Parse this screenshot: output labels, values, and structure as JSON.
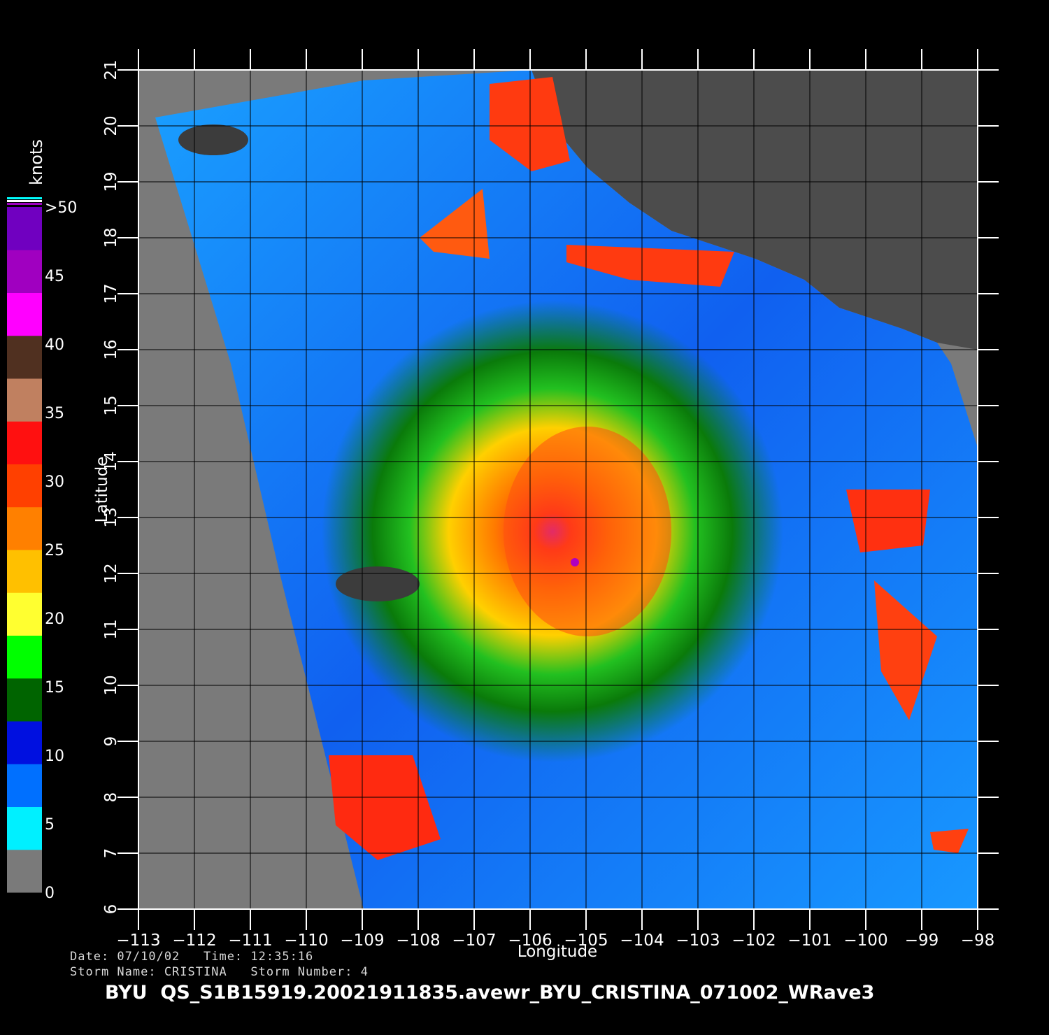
{
  "map": {
    "lon_min": -113,
    "lon_max": -98,
    "lat_min": 6,
    "lat_max": 21,
    "x_ticks": [
      "−113",
      "−112",
      "−111",
      "−110",
      "−109",
      "−108",
      "−107",
      "−106",
      "−105",
      "−104",
      "−103",
      "−102",
      "−101",
      "−100",
      "−99",
      "−98"
    ],
    "y_ticks": [
      "6",
      "7",
      "8",
      "9",
      "10",
      "11",
      "12",
      "13",
      "14",
      "15",
      "16",
      "17",
      "18",
      "19",
      "20",
      "21"
    ],
    "xlabel": "Longitude",
    "ylabel": "Latitude",
    "storm_center": {
      "lon": -105.2,
      "lat": 12.2
    }
  },
  "colorbar": {
    "unit": "knots",
    "labels": [
      "0",
      "5",
      "10",
      "15",
      "20",
      "25",
      "30",
      "35",
      "40",
      "45",
      ">50"
    ],
    "colors": [
      "#7a7a7a",
      "#00f0ff",
      "#0070ff",
      "#0010e0",
      "#006400",
      "#00ff00",
      "#ffff30",
      "#ffc000",
      "#ff8000",
      "#ff4000",
      "#ff1010",
      "#c08060",
      "#503020",
      "#ff00ff",
      "#a000c0",
      "#7000c0"
    ]
  },
  "info": {
    "date_line": "Date: 07/10/02   Time: 12:35:16",
    "storm_line": "Storm Name: CRISTINA   Storm Number: 4",
    "filename": "BYU  QS_S1B15919.20021911835.avewr_BYU_CRISTINA_071002_WRave3"
  }
}
